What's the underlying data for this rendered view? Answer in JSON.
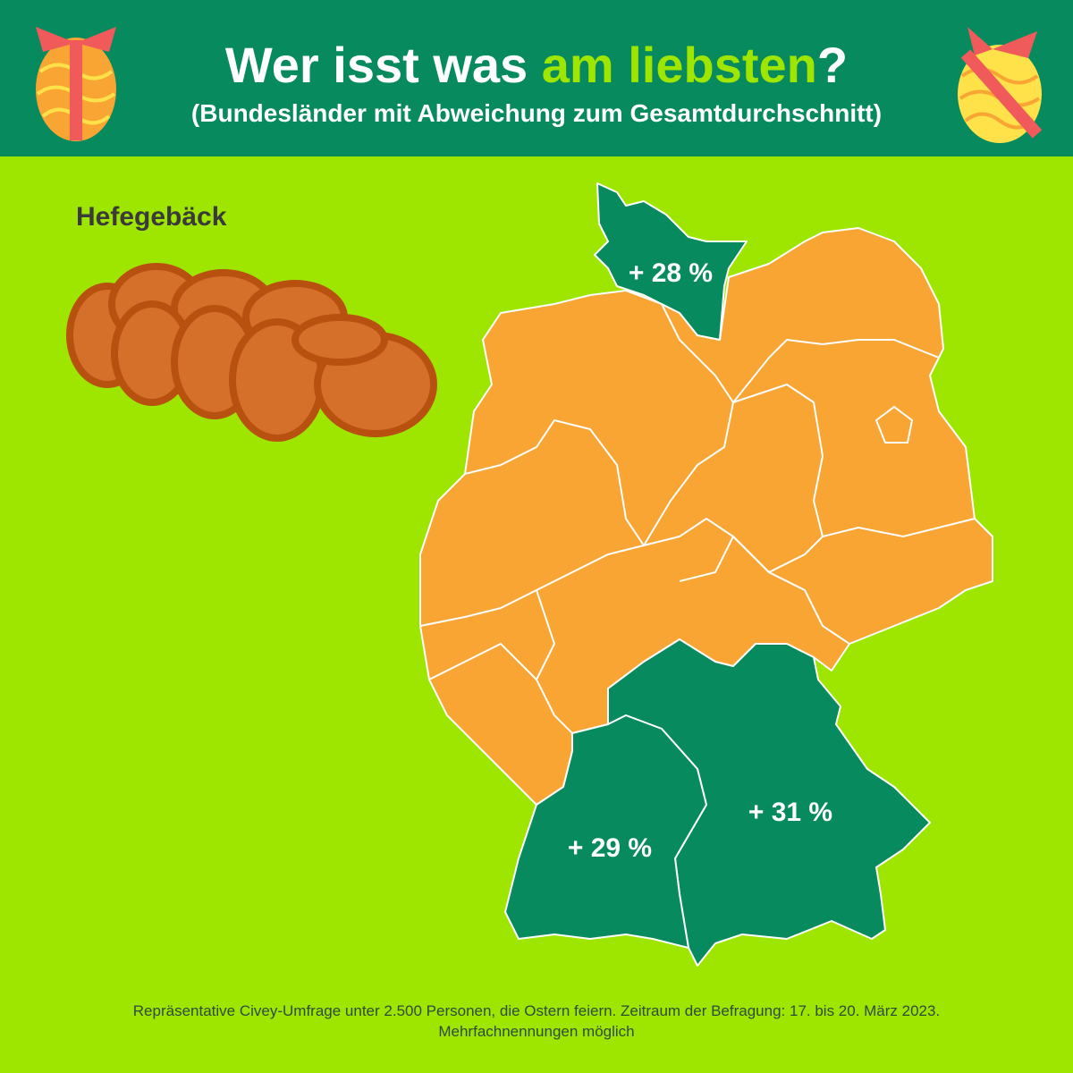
{
  "header": {
    "title_parts": [
      "Wer isst was ",
      "am liebsten",
      "?"
    ],
    "subtitle": "(Bundesländer mit Abweichung zum Gesamtdurchschnitt)"
  },
  "category": "Hefegebäck",
  "map": {
    "labels": [
      "+ 28 %",
      "+ 29 %",
      "+ 31 %"
    ]
  },
  "footer": [
    "Repräsentative Civey-Umfrage unter 2.500 Personen, die Ostern feiern. Zeitraum der Befragung: 17. bis 20. März 2023.",
    "Mehrfachnennungen möglich"
  ]
}
